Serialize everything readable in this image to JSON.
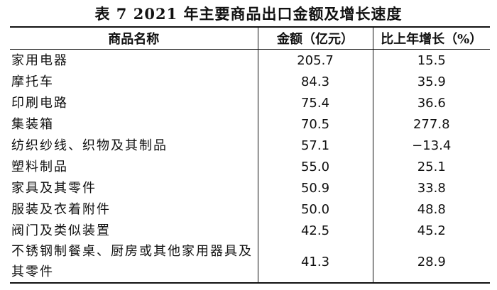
{
  "title": "表 7  2021 年主要商品出口金额及增长速度",
  "table": {
    "columns": [
      "商品名称",
      "金额（亿元）",
      "比上年增长（%）"
    ],
    "rows": [
      [
        "家用电器",
        "205.7",
        "15.5"
      ],
      [
        "摩托车",
        "84.3",
        "35.9"
      ],
      [
        "印刷电路",
        "75.4",
        "36.6"
      ],
      [
        "集装箱",
        "70.5",
        "277.8"
      ],
      [
        "纺织纱线、织物及其制品",
        "57.1",
        "−13.4"
      ],
      [
        "塑料制品",
        "55.0",
        "25.1"
      ],
      [
        "家具及其零件",
        "50.9",
        "33.8"
      ],
      [
        "服装及衣着附件",
        "50.0",
        "48.8"
      ],
      [
        "阀门及类似装置",
        "42.5",
        "45.2"
      ],
      [
        "不锈钢制餐桌、厨房或其他家用器具及其零件",
        "41.3",
        "28.9"
      ]
    ]
  }
}
